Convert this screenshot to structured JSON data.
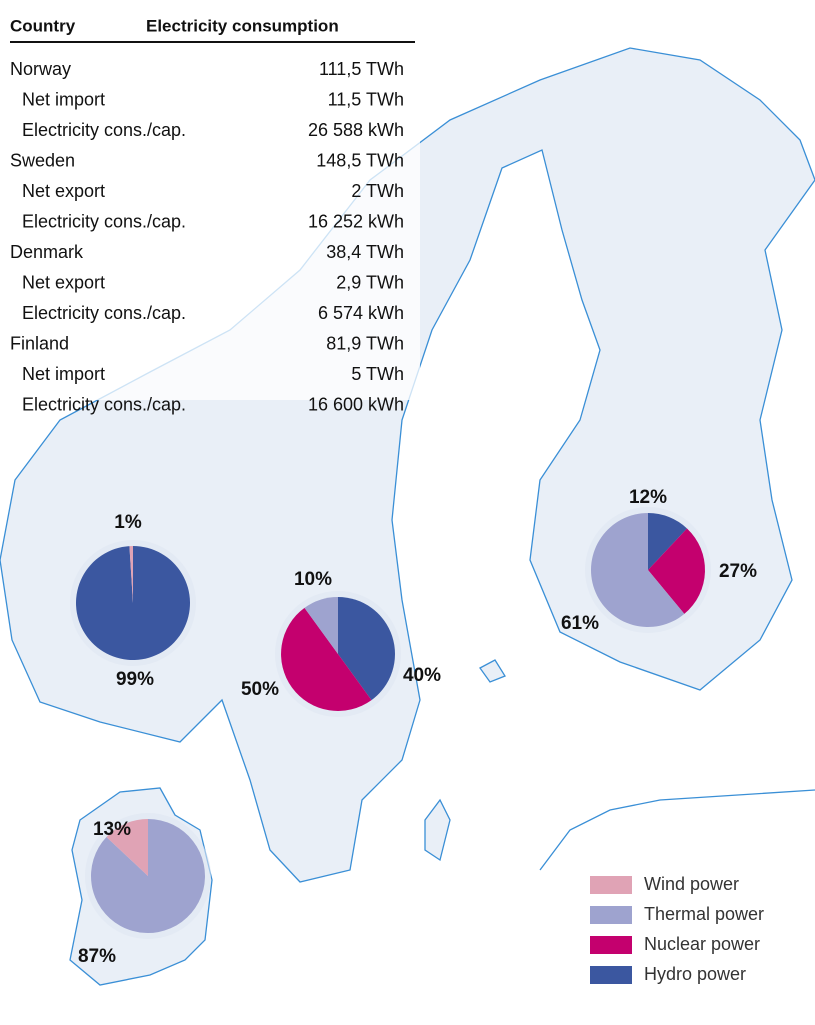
{
  "table": {
    "headers": [
      "Country",
      "Electricity consumption"
    ],
    "countries": [
      {
        "name": "Norway",
        "value": "111,5 TWh",
        "details": [
          [
            "Net import",
            "11,5 TWh"
          ],
          [
            "Electricity cons./cap.",
            "26 588 kWh"
          ]
        ]
      },
      {
        "name": "Sweden",
        "value": "148,5 TWh",
        "details": [
          [
            "Net export",
            "2 TWh"
          ],
          [
            "Electricity cons./cap.",
            "16 252 kWh"
          ]
        ]
      },
      {
        "name": "Denmark",
        "value": "38,4 TWh",
        "details": [
          [
            "Net export",
            "2,9 TWh"
          ],
          [
            "Electricity cons./cap.",
            "6 574 kWh"
          ]
        ]
      },
      {
        "name": "Finland",
        "value": "81,9 TWh",
        "details": [
          [
            "Net import",
            "5 TWh"
          ],
          [
            "Electricity cons./cap.",
            "16 600 kWh"
          ]
        ]
      }
    ]
  },
  "chart_data": [
    {
      "type": "pie",
      "values": [
        99,
        1
      ],
      "value_labels": [
        "99%",
        "1%"
      ],
      "colors": [
        "#3b57a0",
        "#e0a3b5"
      ]
    },
    {
      "type": "pie",
      "values": [
        40,
        50,
        10
      ],
      "value_labels": [
        "40%",
        "50%",
        "10%"
      ],
      "colors": [
        "#3b57a0",
        "#c4006e",
        "#9ea3cf"
      ]
    },
    {
      "type": "pie",
      "values": [
        12,
        27,
        61
      ],
      "value_labels": [
        "12%",
        "27%",
        "61%"
      ],
      "colors": [
        "#3b57a0",
        "#c4006e",
        "#9ea3cf"
      ]
    },
    {
      "type": "pie",
      "values": [
        87,
        13
      ],
      "value_labels": [
        "87%",
        "13%"
      ],
      "colors": [
        "#9ea3cf",
        "#e0a3b5"
      ]
    }
  ],
  "legend": [
    {
      "name": "Wind power",
      "color": "#e0a3b5"
    },
    {
      "name": "Thermal power",
      "color": "#9ea3cf"
    },
    {
      "name": "Nuclear power",
      "color": "#c4006e"
    },
    {
      "name": "Hydro power",
      "color": "#3b57a0"
    }
  ]
}
